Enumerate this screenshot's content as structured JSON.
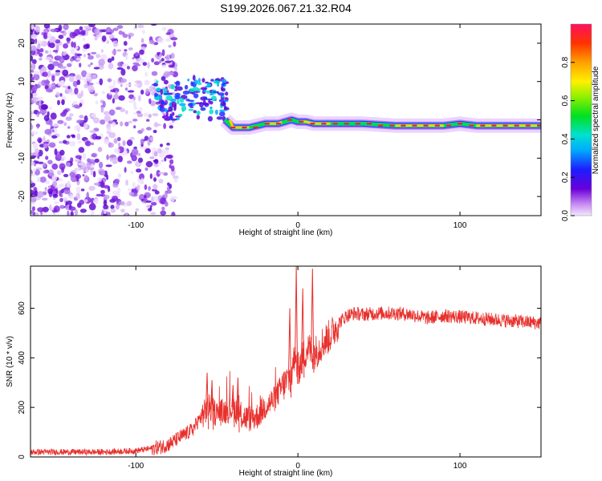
{
  "title": "S199.2026.067.21.32.R04",
  "chart_data": [
    {
      "type": "heatmap",
      "title": "S199.2026.067.21.32.R04",
      "xlabel": "Height of straight line (km)",
      "ylabel": "Frequency (Hz)",
      "xlim": [
        -165,
        150
      ],
      "ylim": [
        -25,
        25
      ],
      "xticks": [
        -100,
        0,
        100
      ],
      "yticks": [
        -20,
        -10,
        0,
        10,
        20
      ],
      "colorbar": {
        "label": "Normalized spectral amplitude",
        "range": [
          0,
          1
        ],
        "ticks": [
          0.0,
          0.2,
          0.4,
          0.6,
          0.8
        ],
        "tick_labels": [
          "0.0",
          "0.2",
          "0.4",
          "0.6",
          "0.8"
        ]
      },
      "ridge": {
        "description_points": [
          [
            -45,
            0
          ],
          [
            -40,
            -2
          ],
          [
            -30,
            -2
          ],
          [
            -20,
            -1
          ],
          [
            -12,
            -1
          ],
          [
            -8,
            -0.5
          ],
          [
            -4,
            0
          ],
          [
            0,
            -0.5
          ],
          [
            5,
            -0.5
          ],
          [
            10,
            -1
          ],
          [
            20,
            -1
          ],
          [
            40,
            -1
          ],
          [
            60,
            -1.5
          ],
          [
            80,
            -1.5
          ],
          [
            90,
            -1.5
          ],
          [
            100,
            -1
          ],
          [
            110,
            -1.5
          ],
          [
            150,
            -1.5
          ]
        ]
      }
    },
    {
      "type": "line",
      "xlabel": "Height of straight line (km)",
      "ylabel": "SNR (10 * v/v)",
      "xlim": [
        -165,
        150
      ],
      "ylim": [
        0,
        770
      ],
      "xticks": [
        -100,
        0,
        100
      ],
      "yticks": [
        0,
        200,
        400,
        600
      ],
      "color": "#e8302c",
      "series": [
        {
          "name": "SNR",
          "x": [
            -165,
            -140,
            -120,
            -100,
            -90,
            -85,
            -80,
            -75,
            -70,
            -65,
            -60,
            -55,
            -50,
            -45,
            -40,
            -35,
            -30,
            -25,
            -20,
            -15,
            -10,
            -5,
            -2,
            0,
            3,
            6,
            9,
            12,
            15,
            20,
            25,
            30,
            35,
            40,
            50,
            60,
            70,
            80,
            90,
            100,
            110,
            120,
            130,
            140,
            150
          ],
          "values": [
            20,
            20,
            20,
            25,
            35,
            40,
            50,
            70,
            90,
            110,
            160,
            200,
            175,
            185,
            200,
            165,
            155,
            165,
            205,
            230,
            280,
            320,
            400,
            350,
            400,
            440,
            420,
            430,
            460,
            490,
            540,
            570,
            580,
            575,
            580,
            580,
            575,
            560,
            570,
            565,
            560,
            555,
            550,
            545,
            540
          ]
        }
      ],
      "spikes": [
        {
          "x": -56,
          "value": 340
        },
        {
          "x": -53,
          "value": 310
        },
        {
          "x": -40,
          "value": 290
        },
        {
          "x": -37,
          "value": 320
        },
        {
          "x": -5,
          "value": 600
        },
        {
          "x": -1,
          "value": 770
        },
        {
          "x": 3,
          "value": 680
        },
        {
          "x": 9,
          "value": 760
        }
      ]
    }
  ]
}
